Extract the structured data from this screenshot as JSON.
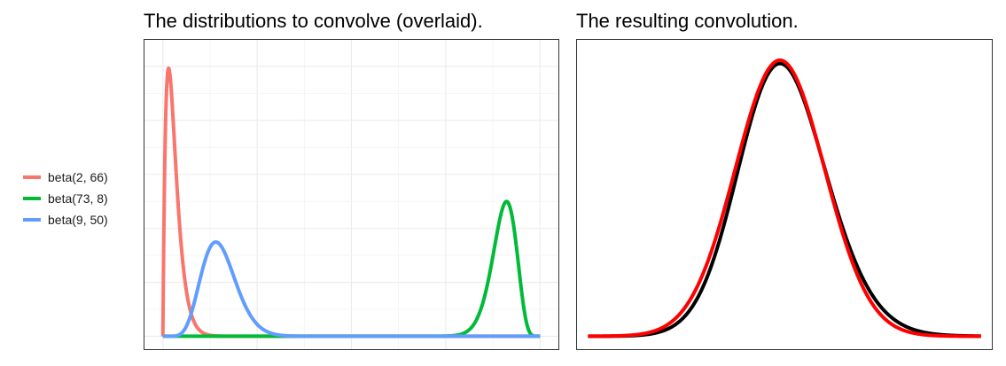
{
  "chart_data": [
    {
      "type": "line",
      "title": "The distributions to convolve (overlaid).",
      "xlabel": "",
      "ylabel": "",
      "xlim": [
        0,
        1
      ],
      "ylim": [
        0,
        27.5
      ],
      "grid": true,
      "axis_ticks_shown": false,
      "legend": "left",
      "series": [
        {
          "name": "beta(2, 66)",
          "distribution": "beta",
          "a": 2,
          "b": 66,
          "color": "#F8766D"
        },
        {
          "name": "beta(73, 8)",
          "distribution": "beta",
          "a": 73,
          "b": 8,
          "color": "#00BA38"
        },
        {
          "name": "beta(9, 50)",
          "distribution": "beta",
          "a": 9,
          "b": 50,
          "color": "#619CFF"
        }
      ]
    },
    {
      "type": "line",
      "title": "The resulting convolution.",
      "xlabel": "",
      "ylabel": "",
      "grid": false,
      "axis_ticks_shown": false,
      "legend": "none",
      "series": [
        {
          "color": "#000000",
          "peak_x": 1.145,
          "peak_density": 2.43
        },
        {
          "color": "#FF0000",
          "peak_x": 1.138,
          "peak_density": 2.46
        }
      ]
    }
  ]
}
